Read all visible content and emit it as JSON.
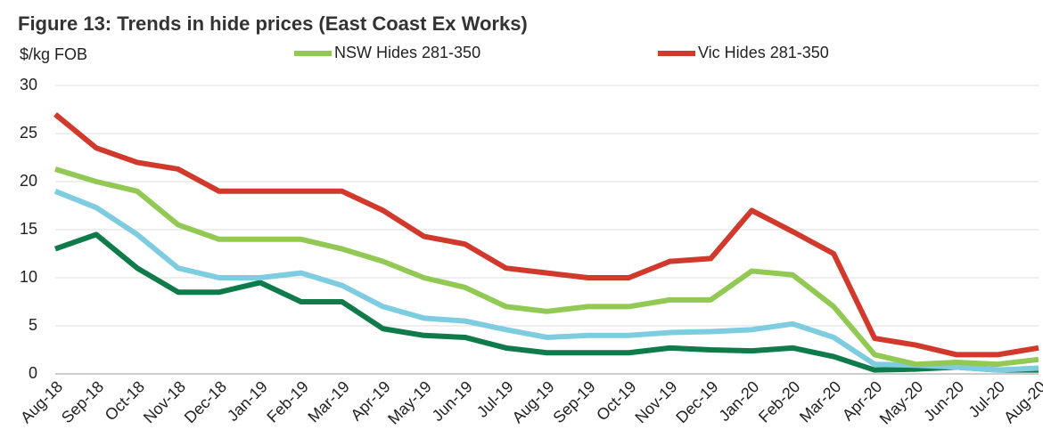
{
  "chart_data": {
    "type": "line",
    "title": "Figure 13: Trends in hide prices (East Coast Ex Works)",
    "y_label": "$/kg FOB",
    "categories": [
      "Aug-18",
      "Sep-18",
      "Oct-18",
      "Nov-18",
      "Dec-18",
      "Jan-19",
      "Feb-19",
      "Mar-19",
      "Apr-19",
      "May-19",
      "Jun-19",
      "Jul-19",
      "Aug-19",
      "Sep-19",
      "Oct-19",
      "Nov-19",
      "Dec-19",
      "Jan-20",
      "Feb-20",
      "Mar-20",
      "Apr-20",
      "May-20",
      "Jun-20",
      "Jul-20",
      "Aug-20"
    ],
    "series": [
      {
        "color": "#0f7a4a",
        "values": [
          13,
          14.5,
          11,
          8.5,
          8.5,
          9.5,
          7.5,
          7.5,
          4.7,
          4,
          3.8,
          2.7,
          2.2,
          2.2,
          2.2,
          2.7,
          2.5,
          2.4,
          2.7,
          1.8,
          0.4,
          0.5,
          0.7,
          0.4,
          0.4
        ]
      },
      {
        "color": "#7ecce0",
        "values": [
          19,
          17.3,
          14.5,
          11,
          10,
          10,
          10.5,
          9.2,
          7,
          5.8,
          5.5,
          4.6,
          3.8,
          4,
          4,
          4.3,
          4.4,
          4.6,
          5.2,
          3.8,
          1,
          0.9,
          0.7,
          0.4,
          0.6
        ]
      },
      {
        "name": "NSW Hides 281-350",
        "color": "#92c955",
        "values": [
          21.3,
          20,
          19,
          15.5,
          14,
          14,
          14,
          13,
          11.7,
          10,
          9,
          7,
          6.5,
          7,
          7,
          7.7,
          7.7,
          10.7,
          10.3,
          7,
          2,
          1,
          1.2,
          1,
          1.5
        ]
      },
      {
        "name": "Vic Hides 281-350",
        "color": "#d0392b",
        "values": [
          27,
          23.5,
          22,
          21.3,
          19,
          19,
          19,
          19,
          17,
          14.3,
          13.5,
          11,
          10.5,
          10,
          10,
          11.7,
          12,
          17,
          14.8,
          12.5,
          3.7,
          3,
          2,
          2,
          2.7
        ]
      }
    ],
    "ylim": [
      0,
      30
    ],
    "yticks": [
      0,
      5,
      10,
      15,
      20,
      25,
      30
    ],
    "grid": true
  }
}
